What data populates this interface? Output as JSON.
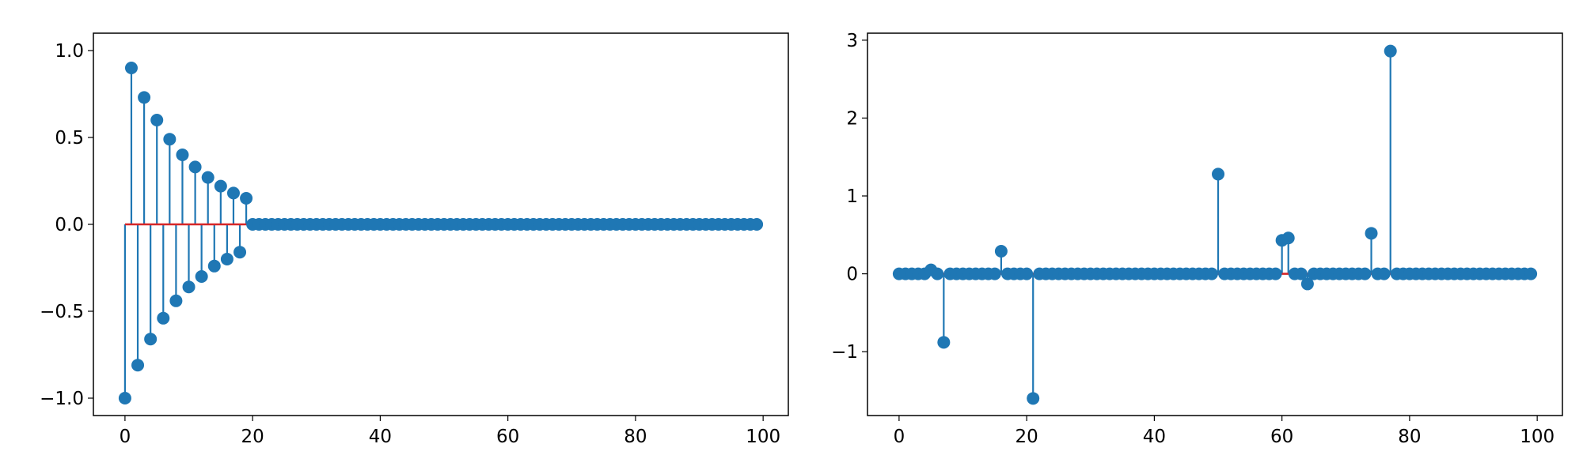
{
  "colors": {
    "stem": "#1f77b4",
    "baseline": "#d62728",
    "axes": "#000000",
    "background": "#ffffff"
  },
  "chart_data": [
    {
      "type": "stem",
      "title": "",
      "xlabel": "",
      "ylabel": "",
      "xlim": [
        -4.95,
        103.95
      ],
      "ylim": [
        -1.1,
        1.1
      ],
      "grid": false,
      "xticks": [
        0,
        20,
        40,
        60,
        80,
        100
      ],
      "xtick_labels": [
        "0",
        "20",
        "40",
        "60",
        "80",
        "100"
      ],
      "yticks": [
        -1.0,
        -0.5,
        0.0,
        0.5,
        1.0
      ],
      "ytick_labels": [
        "−1.0",
        "−0.5",
        "0.0",
        "0.5",
        "1.0"
      ],
      "baseline": 0,
      "n_points": 100,
      "points": [
        [
          0,
          -1.0
        ],
        [
          1,
          0.9
        ],
        [
          2,
          -0.81
        ],
        [
          3,
          0.73
        ],
        [
          4,
          -0.66
        ],
        [
          5,
          0.6
        ],
        [
          6,
          -0.54
        ],
        [
          7,
          0.49
        ],
        [
          8,
          -0.44
        ],
        [
          9,
          0.4
        ],
        [
          10,
          -0.36
        ],
        [
          11,
          0.33
        ],
        [
          12,
          -0.3
        ],
        [
          13,
          0.27
        ],
        [
          14,
          -0.24
        ],
        [
          15,
          0.22
        ],
        [
          16,
          -0.2
        ],
        [
          17,
          0.18
        ],
        [
          18,
          -0.16
        ],
        [
          19,
          0.15
        ]
      ]
    },
    {
      "type": "stem",
      "title": "",
      "xlabel": "",
      "ylabel": "",
      "xlim": [
        -4.95,
        103.95
      ],
      "ylim": [
        -1.82,
        3.09
      ],
      "grid": false,
      "xticks": [
        0,
        20,
        40,
        60,
        80,
        100
      ],
      "xtick_labels": [
        "0",
        "20",
        "40",
        "60",
        "80",
        "100"
      ],
      "yticks": [
        -1,
        0,
        1,
        2,
        3
      ],
      "ytick_labels": [
        "−1",
        "0",
        "1",
        "2",
        "3"
      ],
      "baseline": 0,
      "n_points": 100,
      "points": [
        [
          5,
          0.05
        ],
        [
          7,
          -0.88
        ],
        [
          16,
          0.29
        ],
        [
          21,
          -1.6
        ],
        [
          50,
          1.28
        ],
        [
          60,
          0.43
        ],
        [
          61,
          0.46
        ],
        [
          64,
          -0.13
        ],
        [
          74,
          0.52
        ],
        [
          77,
          2.86
        ]
      ]
    }
  ]
}
